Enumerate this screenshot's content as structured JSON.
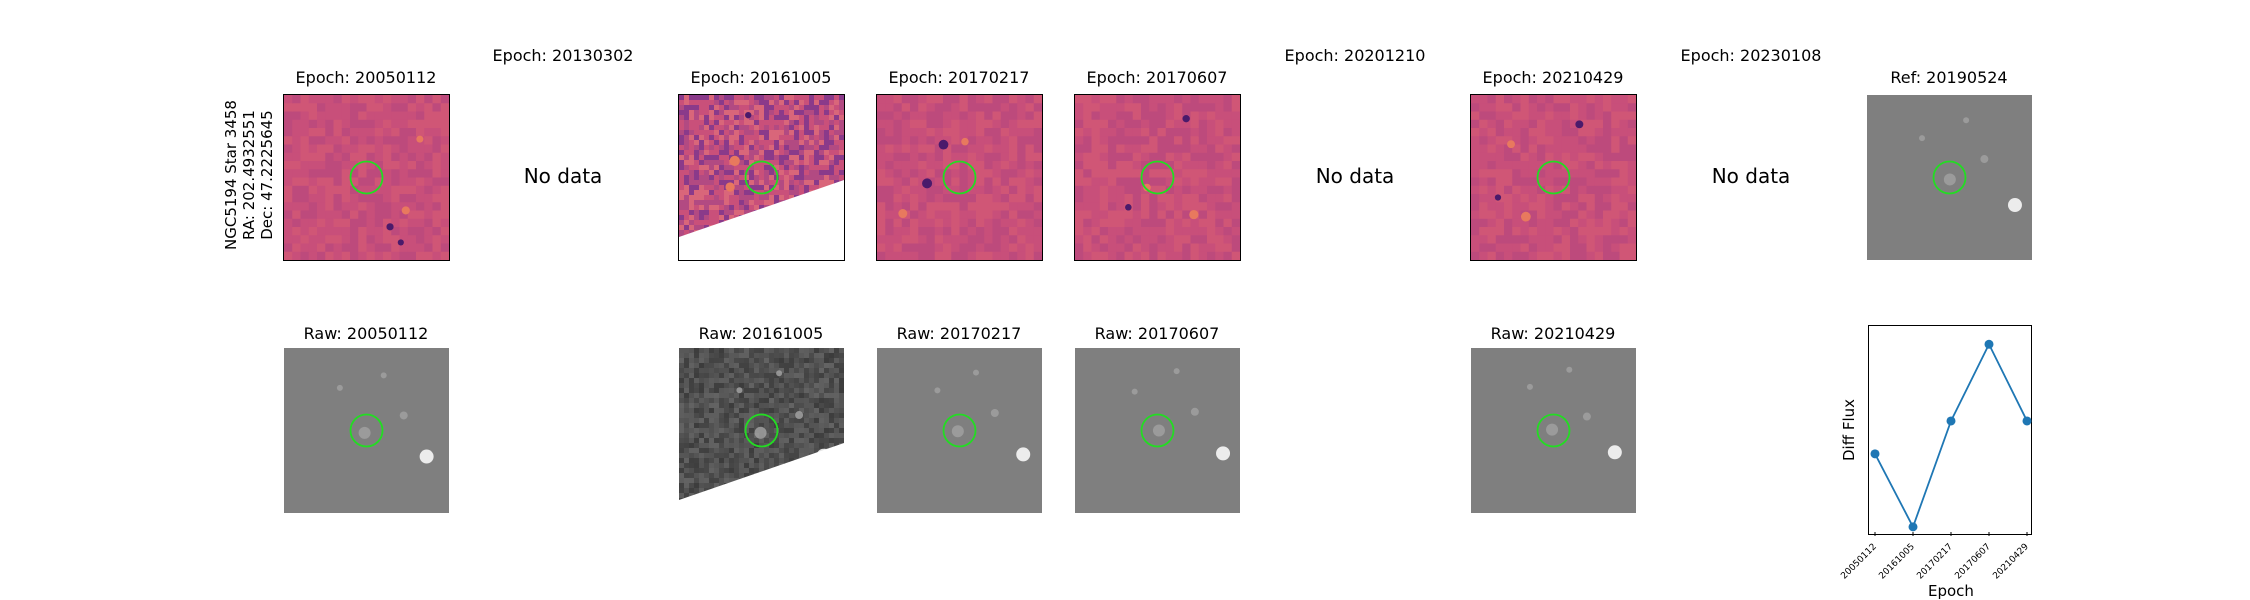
{
  "star_label": {
    "line1": "NGC5194 Star 3458",
    "line2": "RA: 202.4932551",
    "line3": "Dec: 47.2225645"
  },
  "diff_row": [
    {
      "title": "Epoch: 20050112",
      "has_data": true,
      "style": "diff"
    },
    {
      "title": "Epoch: 20130302",
      "has_data": false,
      "nodata_text": "No data"
    },
    {
      "title": "Epoch: 20161005",
      "has_data": true,
      "style": "diff-partial"
    },
    {
      "title": "Epoch: 20170217",
      "has_data": true,
      "style": "diff"
    },
    {
      "title": "Epoch: 20170607",
      "has_data": true,
      "style": "diff"
    },
    {
      "title": "Epoch: 20201210",
      "has_data": false,
      "nodata_text": "No data"
    },
    {
      "title": "Epoch: 20210429",
      "has_data": true,
      "style": "diff"
    },
    {
      "title": "Epoch: 20230108",
      "has_data": false,
      "nodata_text": "No data"
    },
    {
      "title": "Ref: 20190524",
      "has_data": true,
      "style": "ref"
    }
  ],
  "raw_row": [
    {
      "title": "Raw: 20050112"
    },
    {
      "title": "Raw: 20161005"
    },
    {
      "title": "Raw: 20170217"
    },
    {
      "title": "Raw: 20170607"
    },
    {
      "title": "Raw: 20210429"
    }
  ],
  "colors": {
    "diff_base": "#c44b7a",
    "diff_dark": "#4a1a6b",
    "diff_light": "#e8795e",
    "raw_base": "#7f7f7f",
    "circle": "#22dd22",
    "line": "#1f77b4"
  },
  "chart_data": {
    "type": "line",
    "xlabel": "Epoch",
    "ylabel": "Diff Flux",
    "categories": [
      "20050112",
      "20161005",
      "20170217",
      "20170607",
      "20210429"
    ],
    "series": [
      {
        "values": [
          0.45,
          0.05,
          0.63,
          1.05,
          0.63
        ]
      }
    ],
    "ylim": [
      0,
      1.15
    ],
    "grid": false
  }
}
